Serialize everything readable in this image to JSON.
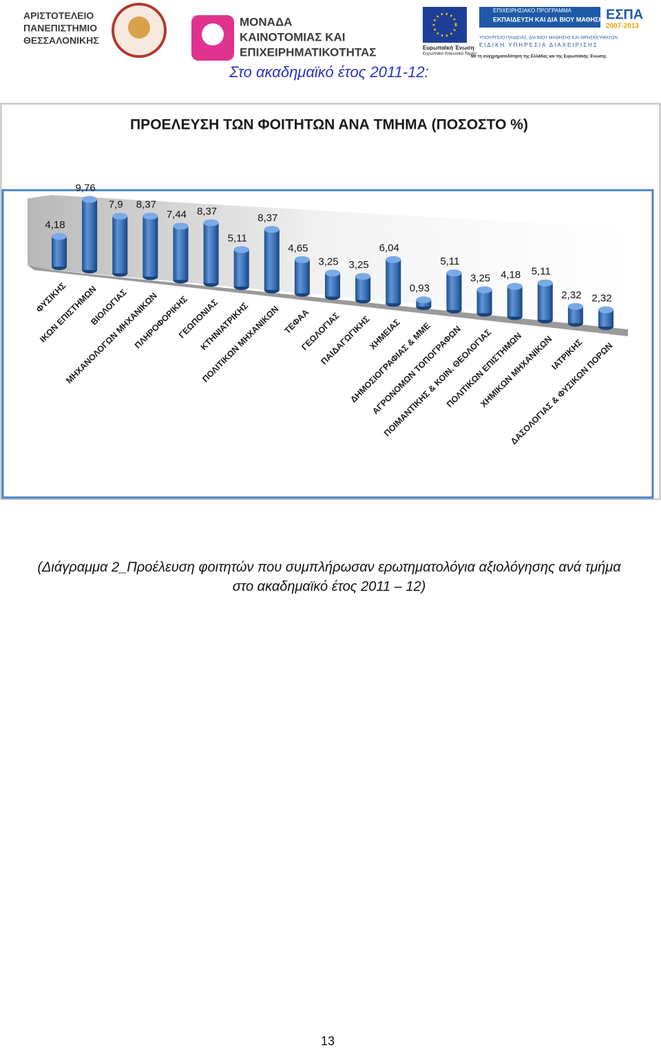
{
  "header": {
    "university": [
      "ΑΡΙΣΤΟΤΕΛΕΙΟ",
      "ΠΑΝΕΠΙΣΤΗΜΙΟ",
      "ΘΕΣΣΑΛΟΝΙΚΗΣ"
    ],
    "unit": [
      "ΜΟΝΑΔΑ",
      "ΚΑΙΝΟΤΟΜΙΑΣ ΚΑΙ",
      "ΕΠΙΧΕΙΡΗΜΑΤΙΚΟΤΗΤΑΣ"
    ],
    "eu": [
      "Ευρωπαϊκή Ένωση",
      "Ευρωπαϊκό Κοινωνικό Ταμείο"
    ],
    "program": [
      "ΕΠΙΧΕΙΡΗΣΙΑΚΟ ΠΡΟΓΡΑΜΜΑ",
      "ΕΚΠΑΙΔΕΥΣΗ ΚΑΙ ΔΙΑ ΒΙΟΥ ΜΑΘΗΣΗ",
      "ΥΠΟΥΡΓΕΙΟ ΠΑΙΔΕΙΑΣ, ΔΙΑ ΒΙΟΥ ΜΑΘΗΣΗΣ ΚΑΙ ΘΡΗΣΚΕΥΜΑΤΩΝ",
      "ΕΙΔΙΚΗ ΥΠΗΡΕΣΙΑ ΔΙΑΧΕΙΡΙΣΗΣ"
    ],
    "cofunding": "Με τη συγχρηματοδότηση της Ελλάδας και της Ευρωπαϊκής Ένωσης",
    "espa": [
      "ΕΣΠΑ",
      "2007-2013"
    ]
  },
  "heading": "Στο ακαδημαϊκό έτος 2011-12:",
  "chart_data": {
    "type": "bar",
    "title": "ΠΡΟΕΛΕΥΣΗ ΤΩΝ ΦΟΙΤΗΤΩΝ ΑΝΑ ΤΜΗΜΑ (ΠΟΣΟΣΤΟ %)",
    "categories": [
      "ΦΥΣΙΚΗΣ",
      "ΙΚΩΝ ΕΠΙΣΤΗΜΩΝ",
      "ΒΙΟΛΟΓΙΑΣ",
      "ΜΗΧΑΝΟΛΟΓΩΝ ΜΗΧΑΝΙΚΩΝ",
      "ΠΛΗΡΟΦΟΡΙΚΗΣ",
      "ΓΕΩΠΟΝΙΑΣ",
      "ΚΤΗΝΙΑΤΡΙΚΗΣ",
      "ΠΟΛΙΤΙΚΩΝ ΜΗΧΑΝΙΚΩΝ",
      "ΤΕΦΑΑ",
      "ΓΕΩΛΟΓΙΑΣ",
      "ΠΑΙΔΑΓΩΓΙΚΗΣ",
      "ΧΗΜΕΙΑΣ",
      "ΔΗΜΟΣΙΟΓΡΑΦΙΑΣ & ΜΜΕ",
      "ΑΓΡΟΝΟΜΩΝ ΤΟΠΟΓΡΑΦΩΝ",
      "ΠΟΙΜΑΝΤΙΚΗΣ & ΚΟΙΝ. ΘΕΟΛΟΓΙΑΣ",
      "ΠΟΛΙΤΙΚΩΝ ΕΠΙΣΤΗΜΩΝ",
      "ΧΗΜΙΚΩΝ ΜΗΧΑΝΙΚΩΝ",
      "ΙΑΤΡΙΚΗΣ",
      "ΔΑΣΟΛΟΓΙΑΣ & ΦΥΣΙΚΩΝ ΠΟΡΩΝ"
    ],
    "values": [
      4.18,
      9.76,
      7.9,
      8.37,
      7.44,
      8.37,
      5.11,
      8.37,
      4.65,
      3.25,
      3.25,
      6.04,
      0.93,
      5.11,
      3.25,
      4.18,
      5.11,
      2.32,
      2.32
    ],
    "value_labels": [
      "4,18",
      "9,76",
      "7,9",
      "8,37",
      "7,44",
      "8,37",
      "5,11",
      "8,37",
      "4,65",
      "3,25",
      "3,25",
      "6,04",
      "0,93",
      "5,11",
      "3,25",
      "4,18",
      "5,11",
      "2,32",
      "2,32"
    ],
    "color": "#3a6fb5"
  },
  "caption": [
    "(Διάγραμμα 2_Προέλευση φοιτητών που συμπλήρωσαν ερωτηματολόγια αξιολόγησης ανά τμήμα",
    "στο ακαδημαϊκό έτος 2011 – 12)"
  ],
  "page_number": "13"
}
